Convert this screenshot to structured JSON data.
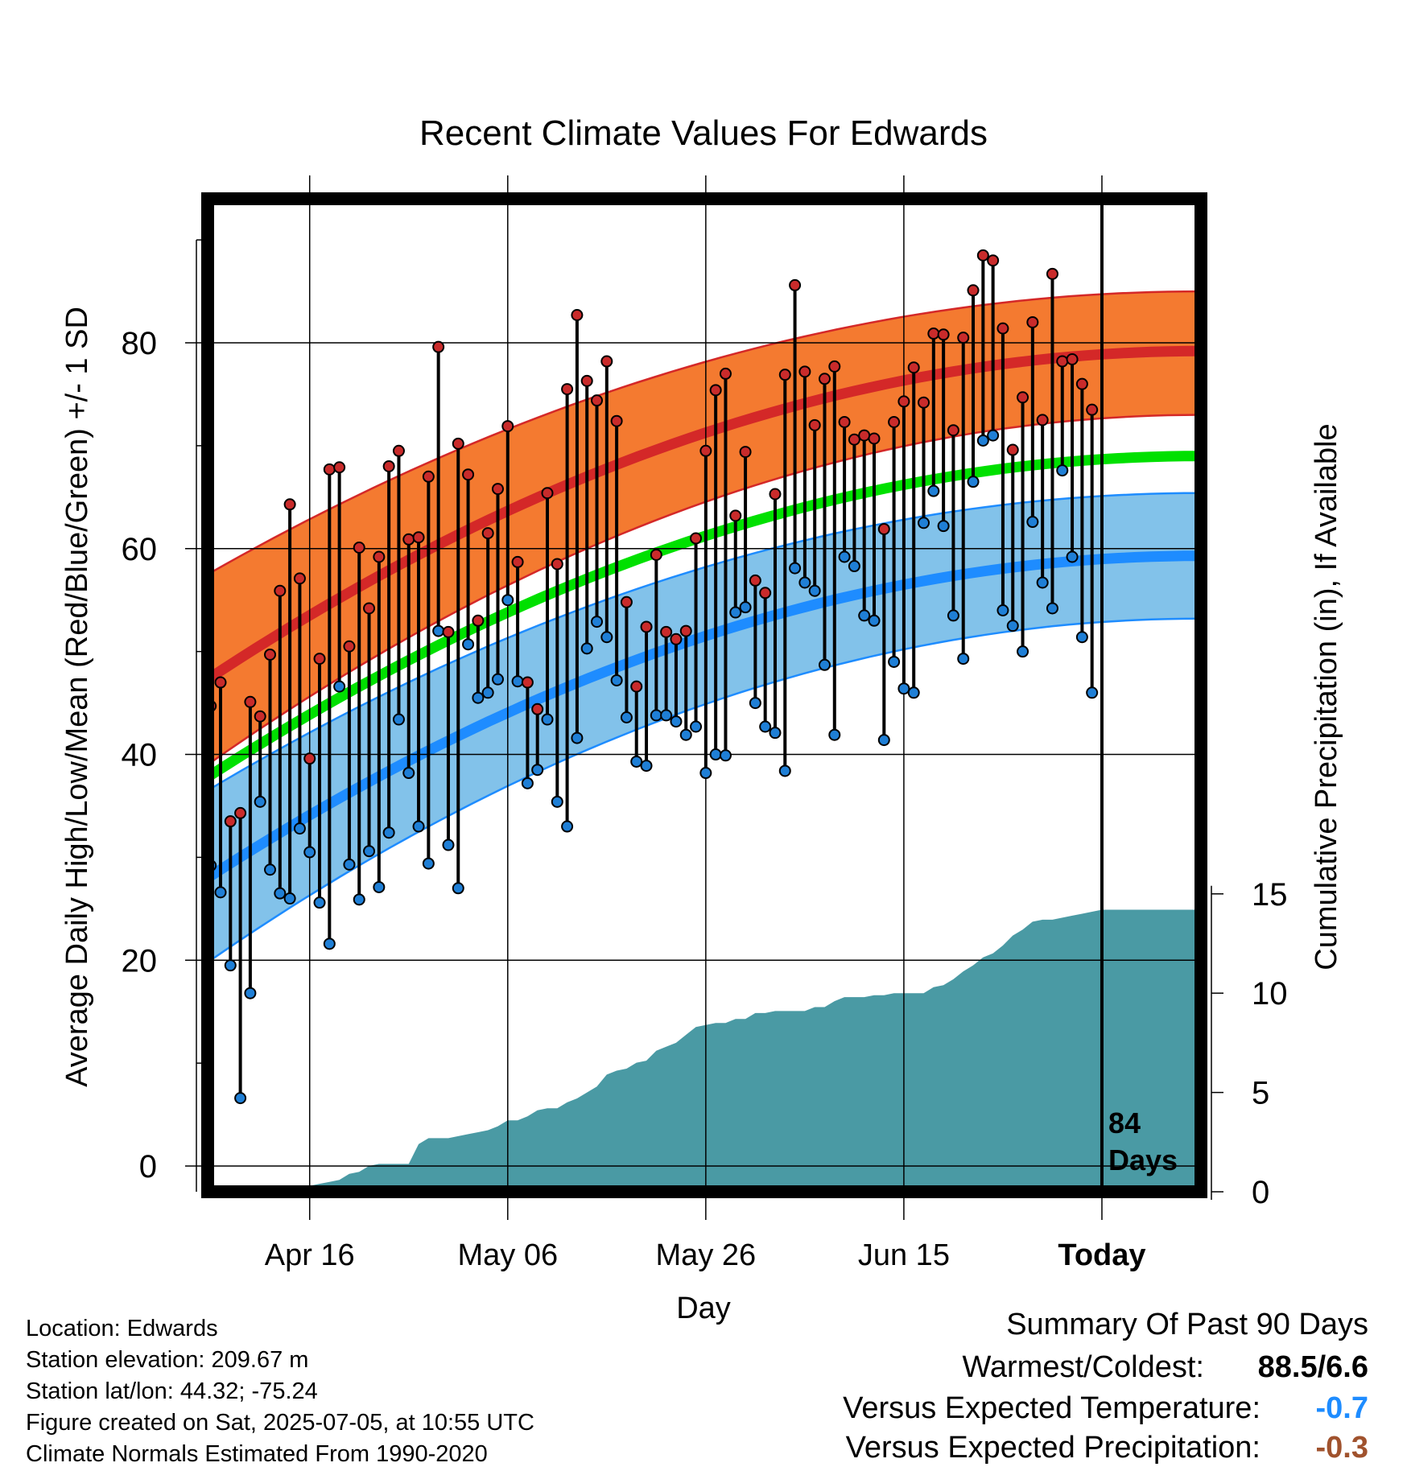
{
  "chart_data": {
    "type": "line",
    "title": "Recent Climate Values For Edwards",
    "xlabel": "Day",
    "ylabel": "Average Daily High/Low/Mean (Red/Blue/Green) +/- 1 SD",
    "y2label": "Cumulative Precipitation (in), If Available",
    "x_ticks": [
      "Apr 16",
      "May 06",
      "May 26",
      "Jun 15",
      "Today"
    ],
    "x_tick_days": [
      10,
      30,
      50,
      70,
      90
    ],
    "y_ticks": [
      0,
      20,
      40,
      60,
      80
    ],
    "y2_ticks": [
      0,
      5,
      10,
      15
    ],
    "ylim": [
      -2.5,
      94
    ],
    "y2lim": [
      0,
      50
    ],
    "xlim": [
      -0.3,
      100
    ],
    "today_day": 90,
    "today_label": [
      "84",
      "Days"
    ],
    "normal_high_mean": [
      47.3,
      79.2
    ],
    "normal_high_upper": [
      57.5,
      85.0
    ],
    "normal_high_lower": [
      39.0,
      73.0
    ],
    "normal_mid_mean": [
      37.8,
      69.0
    ],
    "normal_low_mean": [
      28.0,
      59.3
    ],
    "normal_low_upper": [
      36.5,
      65.4
    ],
    "normal_low_lower": [
      19.8,
      53.2
    ],
    "highs": [
      44.7,
      47.0,
      33.5,
      34.3,
      45.1,
      43.7,
      49.7,
      55.9,
      64.3,
      57.1,
      39.6,
      49.3,
      67.7,
      67.9,
      50.5,
      60.1,
      54.2,
      59.2,
      68.0,
      69.5,
      60.9,
      61.1,
      67.0,
      79.6,
      51.9,
      70.2,
      67.2,
      53.0,
      61.5,
      65.8,
      71.9,
      58.7,
      47.0,
      44.4,
      65.4,
      58.5,
      75.5,
      82.7,
      76.3,
      74.4,
      78.2,
      72.4,
      54.8,
      46.6,
      52.4,
      59.4,
      51.9,
      51.2,
      52.0,
      61.0,
      69.5,
      75.4,
      77.0,
      63.2,
      69.4,
      56.9,
      55.7,
      65.3,
      76.9,
      85.6,
      77.2,
      72.0,
      76.5,
      77.7,
      72.3,
      70.6,
      71.0,
      70.7,
      61.9,
      72.3,
      74.3,
      77.6,
      74.2,
      80.9,
      80.8,
      71.5,
      80.5,
      85.1,
      88.5,
      88.0,
      81.4,
      69.6,
      74.7,
      82.0,
      72.5,
      86.7,
      78.2,
      78.4,
      76.0,
      73.5
    ],
    "lows": [
      29.2,
      26.6,
      19.5,
      6.6,
      16.8,
      35.4,
      28.8,
      26.5,
      26.0,
      32.8,
      30.5,
      25.6,
      21.6,
      46.6,
      29.3,
      25.9,
      30.6,
      27.1,
      32.4,
      43.4,
      38.2,
      33.0,
      29.4,
      52.0,
      31.2,
      27.0,
      50.7,
      45.5,
      46.0,
      47.3,
      55.0,
      47.1,
      37.2,
      38.5,
      43.4,
      35.4,
      33.0,
      41.6,
      50.3,
      52.9,
      51.4,
      47.2,
      43.6,
      39.3,
      38.9,
      43.8,
      43.8,
      43.2,
      41.9,
      42.7,
      38.2,
      40.0,
      39.9,
      53.8,
      54.3,
      45.0,
      42.7,
      42.1,
      38.4,
      58.1,
      56.7,
      55.9,
      48.7,
      41.9,
      59.2,
      58.3,
      53.5,
      53.0,
      41.4,
      49.0,
      46.4,
      46.0,
      62.5,
      65.6,
      62.2,
      53.5,
      49.3,
      66.5,
      70.5,
      71.0,
      54.0,
      52.5,
      50.0,
      62.6,
      56.7,
      54.2,
      67.6,
      59.2,
      51.4,
      46.0
    ],
    "precip_cumulative_days": [
      0,
      7,
      8,
      9,
      10,
      11,
      12,
      13,
      14,
      15,
      16,
      17,
      18,
      19,
      20,
      21,
      22,
      23,
      24,
      25,
      26,
      27,
      28,
      29,
      30,
      31,
      32,
      33,
      34,
      35,
      36,
      37,
      38,
      39,
      40,
      41,
      42,
      43,
      44,
      45,
      46,
      47,
      48,
      49,
      50,
      51,
      52,
      53,
      54,
      55,
      56,
      57,
      58,
      59,
      60,
      61,
      62,
      63,
      64,
      65,
      66,
      67,
      68,
      69,
      70,
      71,
      72,
      73,
      74,
      75,
      76,
      77,
      78,
      79,
      80,
      81,
      82,
      83,
      84,
      85,
      86,
      87,
      88,
      89,
      90,
      100
    ],
    "precip_cumulative": [
      0,
      0,
      0.1,
      0.2,
      0.3,
      0.4,
      0.5,
      0.6,
      0.9,
      1.0,
      1.3,
      1.4,
      1.4,
      1.4,
      1.4,
      2.4,
      2.7,
      2.7,
      2.7,
      2.8,
      2.9,
      3.0,
      3.1,
      3.3,
      3.6,
      3.6,
      3.8,
      4.1,
      4.2,
      4.2,
      4.5,
      4.7,
      5.0,
      5.3,
      5.9,
      6.1,
      6.2,
      6.5,
      6.6,
      7.1,
      7.3,
      7.5,
      7.9,
      8.3,
      8.4,
      8.5,
      8.5,
      8.7,
      8.7,
      9.0,
      9.0,
      9.1,
      9.1,
      9.1,
      9.1,
      9.3,
      9.3,
      9.6,
      9.8,
      9.8,
      9.8,
      9.9,
      9.9,
      10.0,
      10.0,
      10.0,
      10.0,
      10.3,
      10.4,
      10.7,
      11.1,
      11.4,
      11.8,
      12.0,
      12.4,
      12.9,
      13.2,
      13.6,
      13.7,
      13.7,
      13.8,
      13.9,
      14.0,
      14.1,
      14.2,
      14.2
    ],
    "colors": {
      "high": "#d42828",
      "high_band": "#f47a30",
      "mid": "#00e000",
      "low": "#1e8cff",
      "low_band": "#82c2ea",
      "precip": "#4a9aa4",
      "high_dot": "#c92b2b",
      "low_dot": "#1f7fd6"
    }
  },
  "footer": {
    "location": "Location: Edwards",
    "elevation": "Station elevation: 209.67 m",
    "latlon": "Station lat/lon: 44.32; -75.24",
    "created": "Figure created on Sat, 2025-07-05, at 10:55 UTC",
    "normals": "Climate Normals Estimated From 1990-2020"
  },
  "summary": {
    "heading": "Summary Of Past 90 Days",
    "warm_cold_label": "Warmest/Coldest:",
    "warm_cold_value": "88.5/6.6",
    "temp_label": "Versus Expected Temperature:",
    "temp_value": "-0.7",
    "temp_color": "#1e8cff",
    "precip_label": "Versus Expected Precipitation:",
    "precip_value": "-0.3",
    "precip_color": "#a0522d"
  }
}
